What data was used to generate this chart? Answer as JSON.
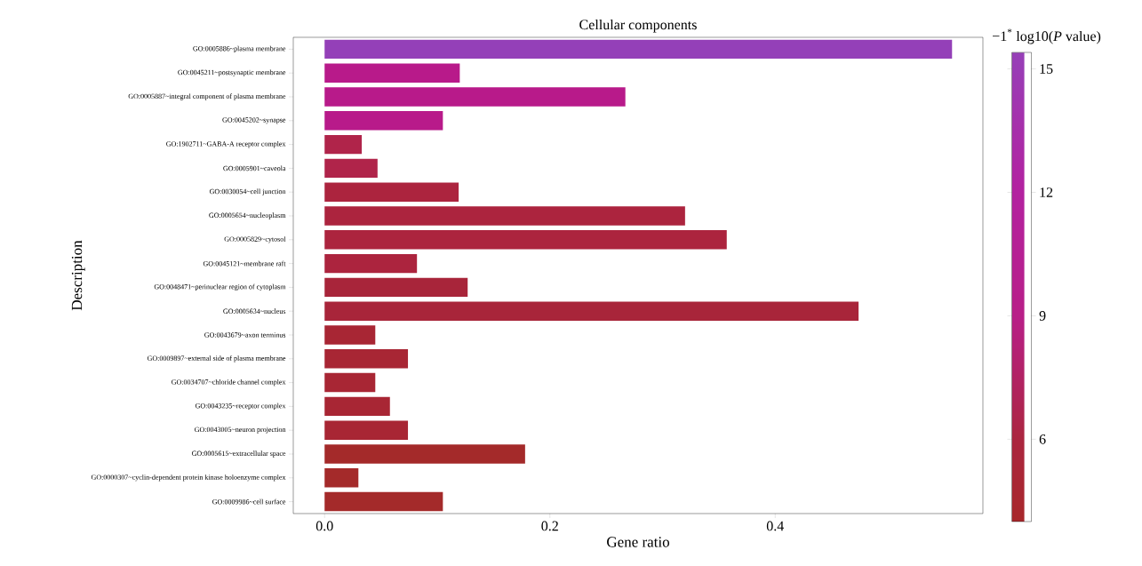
{
  "chart_data": {
    "type": "bar",
    "orientation": "horizontal",
    "title": "Cellular components",
    "xlabel": "Gene ratio",
    "ylabel": "Description",
    "clabel": "−1$^{*}$ log10(*P* value)",
    "categories": [
      "GO:0005886~plasma membrane",
      "GO:0045211~postsynaptic membrane",
      "GO:0005887~integral component of plasma membrane",
      "GO:0045202~synapse",
      "GO:1902711~GABA-A receptor complex",
      "GO:0005901~caveola",
      "GO:0030054~cell junction",
      "GO:0005654~nucleoplasm",
      "GO:0005829~cytosol",
      "GO:0045121~membrane raft",
      "GO:0048471~perinuclear region of cytoplasm",
      "GO:0005634~nucleus",
      "GO:0043679~axon terminus",
      "GO:0009897~external side of plasma membrane",
      "GO:0034707~chloride channel complex",
      "GO:0043235~receptor complex",
      "GO:0043005~neuron projection",
      "GO:0005615~extracellular space",
      "GO:0000307~cyclin-dependent protein kinase holoenzyme complex",
      "GO:0009986~cell surface"
    ],
    "values": [
      0.557,
      0.12,
      0.267,
      0.105,
      0.033,
      0.047,
      0.119,
      0.32,
      0.357,
      0.082,
      0.127,
      0.474,
      0.045,
      0.074,
      0.045,
      0.058,
      0.074,
      0.178,
      0.03,
      0.105
    ],
    "colors": [
      "#9440b8",
      "#b81a8a",
      "#b81a8a",
      "#b81a8a",
      "#b0244a",
      "#b0244a",
      "#ac243e",
      "#ac243e",
      "#ac243e",
      "#ac243e",
      "#a8253a",
      "#a8253a",
      "#a82634",
      "#a82634",
      "#a82634",
      "#a82634",
      "#a82634",
      "#a42a2a",
      "#a42a2a",
      "#a42a2a"
    ],
    "xlim": [
      -0.0278,
      0.5844
    ],
    "xticks": [
      {
        "value": 0,
        "label": "0.0"
      },
      0.2,
      0.4
    ],
    "clim": [
      4.0,
      15.4
    ],
    "cticks": [
      6,
      9,
      12,
      15
    ],
    "grid": false
  }
}
